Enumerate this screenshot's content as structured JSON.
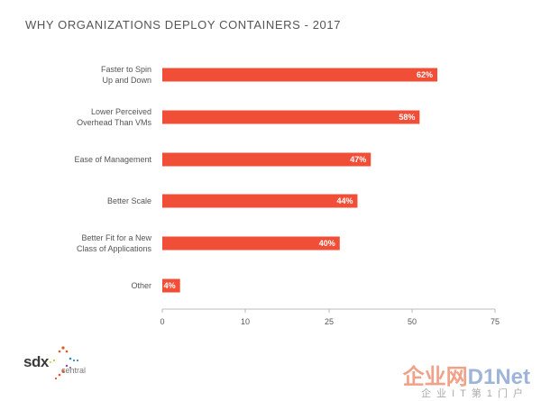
{
  "chart_data": {
    "type": "bar",
    "orientation": "horizontal",
    "title": "WHY ORGANIZATIONS DEPLOY CONTAINERS - 2017",
    "categories": [
      [
        "Faster to Spin",
        "Up and Down"
      ],
      [
        "Lower Perceived",
        "Overhead Than VMs"
      ],
      [
        "Ease of Management"
      ],
      [
        "Better Scale"
      ],
      [
        "Better Fit for a New",
        "Class of Applications"
      ],
      [
        "Other"
      ]
    ],
    "values": [
      62,
      58,
      47,
      44,
      40,
      4
    ],
    "value_labels": [
      "62%",
      "58%",
      "47%",
      "44%",
      "40%",
      "4%"
    ],
    "xlim": [
      0,
      75
    ],
    "xticks": [
      0,
      10,
      25,
      50,
      75
    ],
    "grid": false,
    "bar_color": "#f04e37"
  },
  "logo": {
    "name": "sdxcentral-logo",
    "text_sdx": "sdx",
    "text_central": "central"
  },
  "watermark": {
    "text_main": "企业网",
    "text_net": "D1Net",
    "text_sub": "企业IT第1门户"
  }
}
